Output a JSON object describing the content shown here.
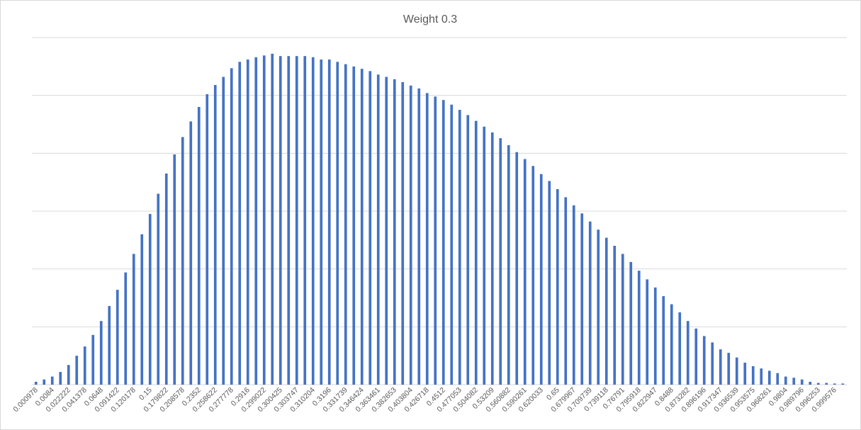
{
  "chart_data": {
    "type": "bar",
    "title": "Weight 0.3",
    "xlabel": "",
    "ylabel": "",
    "ylim": [
      0,
      6
    ],
    "grid": true,
    "legend": "none",
    "bar_color": "#4472c4",
    "tick_labels": [
      "0.000978",
      "0.0084",
      "0.022222",
      "0.041378",
      "0.0648",
      "0.091422",
      "0.120178",
      "0.15",
      "0.179822",
      "0.208578",
      "0.2352",
      "0.258622",
      "0.277778",
      "0.2916",
      "0.299022",
      "0.300425",
      "0.303747",
      "0.310204",
      "0.3196",
      "0.331739",
      "0.346424",
      "0.363461",
      "0.382653",
      "0.403804",
      "0.426718",
      "0.4512",
      "0.477053",
      "0.504082",
      "0.53209",
      "0.560882",
      "0.590261",
      "0.620033",
      "0.65",
      "0.679967",
      "0.709739",
      "0.739118",
      "0.76791",
      "0.795918",
      "0.822947",
      "0.8488",
      "0.873282",
      "0.896196",
      "0.917347",
      "0.936539",
      "0.953575",
      "0.968261",
      "0.9804",
      "0.989796",
      "0.996253",
      "0.999576"
    ],
    "values": [
      0.05,
      0.09,
      0.14,
      0.22,
      0.34,
      0.5,
      0.66,
      0.86,
      1.1,
      1.36,
      1.64,
      1.94,
      2.26,
      2.6,
      2.95,
      3.3,
      3.65,
      3.98,
      4.28,
      4.55,
      4.8,
      5.02,
      5.18,
      5.32,
      5.47,
      5.58,
      5.62,
      5.66,
      5.69,
      5.72,
      5.68,
      5.68,
      5.68,
      5.68,
      5.66,
      5.62,
      5.62,
      5.58,
      5.54,
      5.5,
      5.46,
      5.42,
      5.36,
      5.32,
      5.28,
      5.23,
      5.17,
      5.12,
      5.04,
      4.98,
      4.92,
      4.84,
      4.75,
      4.66,
      4.56,
      4.46,
      4.36,
      4.26,
      4.14,
      4.02,
      3.9,
      3.78,
      3.64,
      3.52,
      3.38,
      3.24,
      3.1,
      2.96,
      2.82,
      2.68,
      2.54,
      2.4,
      2.26,
      2.12,
      1.97,
      1.82,
      1.68,
      1.53,
      1.39,
      1.25,
      1.1,
      0.97,
      0.84,
      0.73,
      0.61,
      0.55,
      0.47,
      0.38,
      0.32,
      0.28,
      0.24,
      0.2,
      0.14,
      0.12,
      0.09,
      0.05,
      0.03,
      0.03,
      0.02,
      0.02
    ]
  }
}
